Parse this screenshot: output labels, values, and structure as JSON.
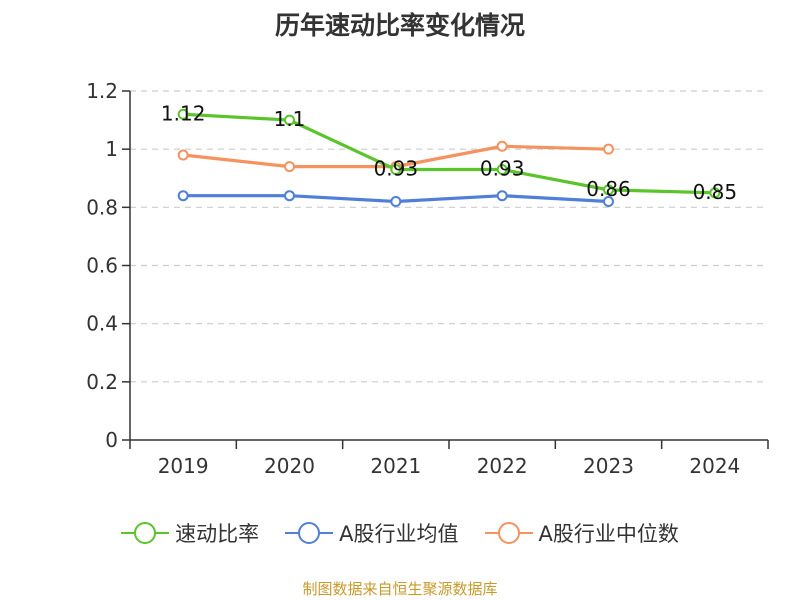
{
  "chart_data": {
    "type": "line",
    "title": "历年速动比率变化情况",
    "categories": [
      "2019",
      "2020",
      "2021",
      "2022",
      "2023",
      "2024"
    ],
    "ylim": [
      0,
      1.2
    ],
    "yticks": [
      "0",
      "0.2",
      "0.4",
      "0.6",
      "0.8",
      "1",
      "1.2"
    ],
    "grid": true,
    "legend_position": "bottom",
    "series": [
      {
        "name": "速动比率",
        "color": "#5ac42a",
        "values": [
          1.12,
          1.1,
          0.93,
          0.93,
          0.86,
          0.85
        ],
        "labels": [
          "1.12",
          "1.1",
          "0.93",
          "0.93",
          "0.86",
          "0.85"
        ]
      },
      {
        "name": "A股行业均值",
        "color": "#4f7fd8",
        "values": [
          0.84,
          0.84,
          0.82,
          0.84,
          0.82,
          null
        ]
      },
      {
        "name": "A股行业中位数",
        "color": "#f5925e",
        "values": [
          0.98,
          0.94,
          0.94,
          1.01,
          1.0,
          null
        ]
      }
    ]
  },
  "source": "制图数据来自恒生聚源数据库"
}
